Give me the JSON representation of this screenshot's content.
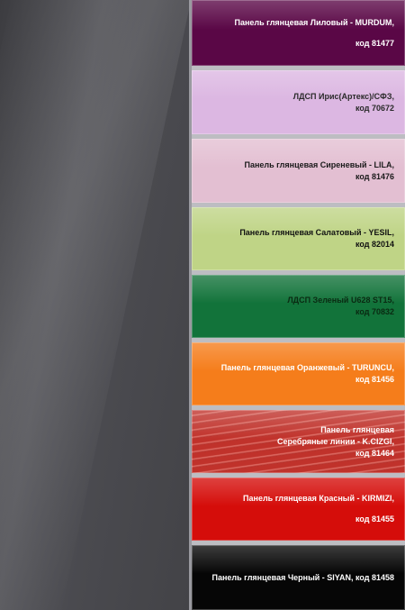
{
  "swatches": [
    {
      "line1": "Панель глянцевая Лиловый - MURDUM,",
      "line2": "код 81477",
      "color": "#5a0746"
    },
    {
      "line1": "ЛДСП Ирис(Артекс)/СФЗ,",
      "line2": "код 70672",
      "color": "#dcb7e2"
    },
    {
      "line1": "Панель глянцевая  Сиреневый - LILA,",
      "line2": "код 81476",
      "color": "#e3bfd2"
    },
    {
      "line1": "Панель глянцевая Салатовый - YESIL,",
      "line2": "код 82014",
      "color": "#bfd486"
    },
    {
      "line1": "ЛДСП Зеленый U628 ST15,",
      "line2": "код 70832",
      "color": "#12733a"
    },
    {
      "line1": "Панель глянцевая  Оранжевый - TURUNCU,",
      "line2": "код 81456",
      "color": "#f57d1b"
    },
    {
      "line1": "Панель глянцевая",
      "line2": "Серебряные линии - K.CIZGI,",
      "line3": "код 81464",
      "color": "#c0322b"
    },
    {
      "line1": "Панель глянцевая Красный - KIRMIZI,",
      "line2": "код 81455",
      "color": "#d50d0a"
    },
    {
      "line1": "Панель глянцевая Черный - SIYAN, код 81458",
      "color": "#060606"
    }
  ]
}
